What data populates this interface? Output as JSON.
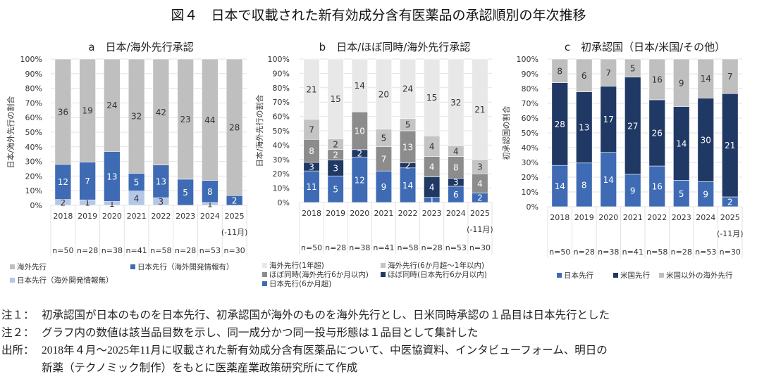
{
  "figure_title": "図４　日本で収載された新有効成分含有医薬品の承認順別の年次推移",
  "chart_data": [
    {
      "type": "bar",
      "stacked": true,
      "title": "a　日本/海外先行承認",
      "ylabel": "日本/海外先行の割合",
      "yticks": [
        "0%",
        "10%",
        "20%",
        "30%",
        "40%",
        "50%",
        "60%",
        "70%",
        "80%",
        "90%",
        "100%"
      ],
      "ylim": [
        0,
        100
      ],
      "categories": [
        "2018",
        "2019",
        "2020",
        "2021",
        "2022",
        "2023",
        "2024",
        "2025"
      ],
      "category_notes": [
        "",
        "",
        "",
        "",
        "",
        "",
        "",
        "(-11月)"
      ],
      "n_labels": [
        "n=50",
        "n=28",
        "n=38",
        "n=41",
        "n=58",
        "n=28",
        "n=53",
        "n=30"
      ],
      "series": [
        {
          "name": "日本先行（海外開発情報無）",
          "color": "#b4c7e7",
          "values": [
            2,
            1,
            1,
            4,
            3,
            0,
            1,
            0
          ]
        },
        {
          "name": "日本先行（海外開発情報有）",
          "color": "#3e6bb4",
          "values": [
            12,
            7,
            13,
            5,
            13,
            5,
            8,
            2
          ]
        },
        {
          "name": "海外先行",
          "color": "#bfbfbf",
          "values": [
            36,
            19,
            24,
            32,
            42,
            23,
            44,
            28
          ]
        }
      ]
    },
    {
      "type": "bar",
      "stacked": true,
      "title": "b　日本/ほぼ同時/海外先行承認",
      "ylabel": "日本/海外先行の割合",
      "yticks": [
        "0%",
        "10%",
        "20%",
        "30%",
        "40%",
        "50%",
        "60%",
        "70%",
        "80%",
        "90%",
        "100%"
      ],
      "ylim": [
        0,
        100
      ],
      "categories": [
        "2018",
        "2019",
        "2020",
        "2021",
        "2022",
        "2023",
        "2024",
        "2025"
      ],
      "category_notes": [
        "",
        "",
        "",
        "",
        "",
        "",
        "",
        "(-11月)"
      ],
      "n_labels": [
        "n=50",
        "n=28",
        "n=38",
        "n=41",
        "n=58",
        "n=28",
        "n=53",
        "n=30"
      ],
      "series": [
        {
          "name": "日本先行(6か月超)",
          "color": "#3e6bb4",
          "values": [
            11,
            5,
            12,
            9,
            14,
            1,
            6,
            2
          ]
        },
        {
          "name": "ほぼ同時(日本先行6か月以内)",
          "color": "#203864",
          "values": [
            3,
            3,
            2,
            0,
            2,
            4,
            3,
            0
          ]
        },
        {
          "name": "ほぼ同時(海外先行6か月以内)",
          "color": "#8c8c8c",
          "values": [
            8,
            2,
            10,
            7,
            13,
            4,
            8,
            4
          ]
        },
        {
          "name": "海外先行(6か月超～1年以内)",
          "color": "#c4c4c4",
          "values": [
            7,
            2,
            0,
            5,
            5,
            4,
            4,
            3
          ]
        },
        {
          "name": "海外先行(1年超)",
          "color": "#e8e8e8",
          "values": [
            21,
            15,
            14,
            20,
            24,
            15,
            32,
            21
          ]
        }
      ]
    },
    {
      "type": "bar",
      "stacked": true,
      "title": "c　初承認国（日本/米国/その他）",
      "ylabel": "初承認国の割合",
      "yticks": [
        "0%",
        "10%",
        "20%",
        "30%",
        "40%",
        "50%",
        "60%",
        "70%",
        "80%",
        "90%",
        "100%"
      ],
      "ylim": [
        0,
        100
      ],
      "categories": [
        "2018",
        "2019",
        "2020",
        "2021",
        "2022",
        "2023",
        "2024",
        "2025"
      ],
      "category_notes": [
        "",
        "",
        "",
        "",
        "",
        "",
        "",
        "(-11月)"
      ],
      "n_labels": [
        "n=50",
        "n=28",
        "n=38",
        "n=41",
        "n=58",
        "n=28",
        "n=53",
        "n=30"
      ],
      "series": [
        {
          "name": "日本先行",
          "color": "#3e6bb4",
          "values": [
            14,
            8,
            14,
            9,
            16,
            5,
            9,
            2
          ]
        },
        {
          "name": "米国先行",
          "color": "#203864",
          "values": [
            28,
            13,
            17,
            27,
            26,
            14,
            30,
            21
          ]
        },
        {
          "name": "米国以外の海外先行",
          "color": "#bfbfbf",
          "values": [
            8,
            6,
            7,
            5,
            16,
            9,
            14,
            7
          ]
        }
      ]
    }
  ],
  "notes": [
    {
      "label": "注１：",
      "text": "初承認国が日本のものを日本先行、初承認国が海外のものを海外先行とし、日米同時承認の１品目は日本先行とした"
    },
    {
      "label": "注２：",
      "text": "グラフ内の数値は該当品目数を示し、同一成分かつ同一投与形態は１品目として集計した"
    },
    {
      "label": "出所：",
      "text": "2018年４月～2025年11月に収載された新有効成分含有医薬品について、中医協資料、インタビューフォーム、明日の"
    },
    {
      "label": "",
      "text": "新薬（テクノミック制作）をもとに医薬産業政策研究所にて作成"
    }
  ]
}
